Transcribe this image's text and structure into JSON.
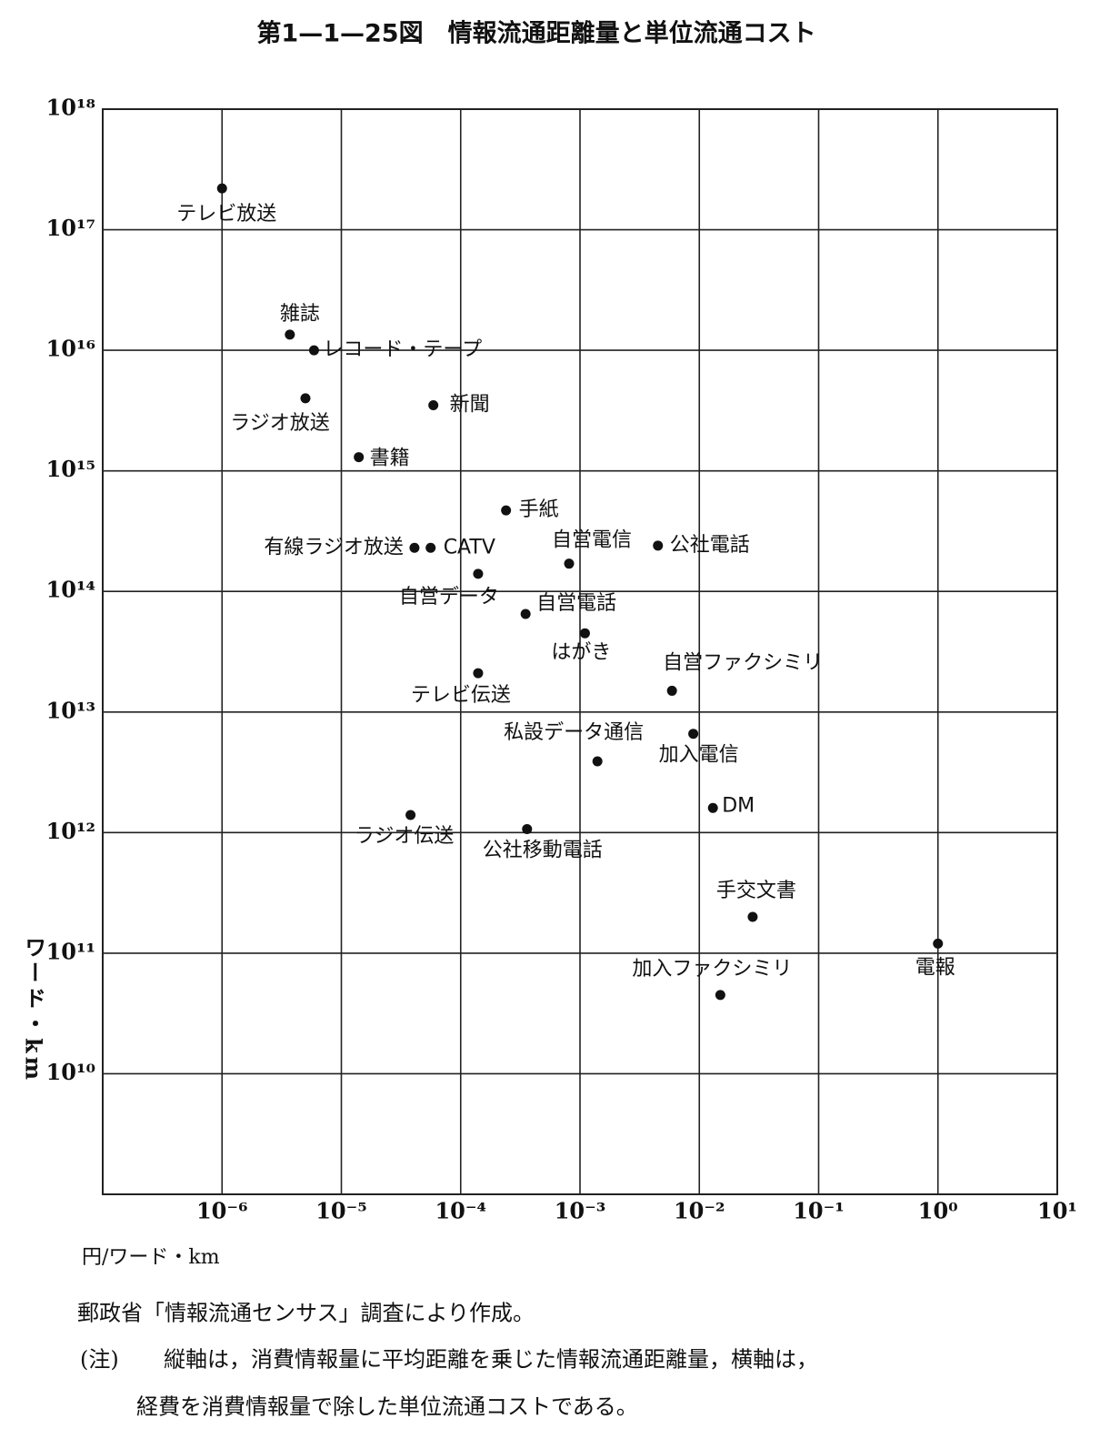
{
  "chart_data": {
    "type": "scatter",
    "title": "第1—1—25図　情報流通距離量と単位流通コスト",
    "x_label": "円/ワード・km",
    "y_label": "ワード・km",
    "log_x": true,
    "log_y": true,
    "grid": true,
    "color": "#111111",
    "xlim": [
      1e-07,
      10
    ],
    "ylim": [
      1000000000.0,
      1e+18
    ],
    "xticks": [
      {
        "value": 1e-06,
        "label": "10⁻⁶"
      },
      {
        "value": 1e-05,
        "label": "10⁻⁵"
      },
      {
        "value": 0.0001,
        "label": "10⁻⁴"
      },
      {
        "value": 0.001,
        "label": "10⁻³"
      },
      {
        "value": 0.01,
        "label": "10⁻²"
      },
      {
        "value": 0.1,
        "label": "10⁻¹"
      },
      {
        "value": 1,
        "label": "10⁰"
      },
      {
        "value": 10,
        "label": "10¹"
      }
    ],
    "yticks": [
      {
        "value": 10000000000.0,
        "label": "10¹⁰"
      },
      {
        "value": 100000000000.0,
        "label": "10¹¹"
      },
      {
        "value": 1000000000000.0,
        "label": "10¹²"
      },
      {
        "value": 10000000000000.0,
        "label": "10¹³"
      },
      {
        "value": 100000000000000.0,
        "label": "10¹⁴"
      },
      {
        "value": 1000000000000000.0,
        "label": "10¹⁵"
      },
      {
        "value": 1e+16,
        "label": "10¹⁶"
      },
      {
        "value": 1e+17,
        "label": "10¹⁷"
      },
      {
        "value": 1e+18,
        "label": "10¹⁸"
      }
    ],
    "points": [
      {
        "label": "テレビ放送",
        "x": 1e-06,
        "y": 2.2e+17
      },
      {
        "label": "雑誌",
        "x": 3.7e-06,
        "y": 1.35e+16
      },
      {
        "label": "レコード・テープ",
        "x": 5.9e-06,
        "y": 1e+16
      },
      {
        "label": "ラジオ放送",
        "x": 5e-06,
        "y": 4000000000000000.0
      },
      {
        "label": "新聞",
        "x": 5.9e-05,
        "y": 3500000000000000.0
      },
      {
        "label": "書籍",
        "x": 1.4e-05,
        "y": 1300000000000000.0
      },
      {
        "label": "手紙",
        "x": 0.00024,
        "y": 470000000000000.0
      },
      {
        "label": "有線ラジオ放送",
        "x": 4.1e-05,
        "y": 230000000000000.0
      },
      {
        "label": "CATV",
        "x": 5.6e-05,
        "y": 230000000000000.0
      },
      {
        "label": "自営電信",
        "x": 0.00081,
        "y": 170000000000000.0
      },
      {
        "label": "公社電話",
        "x": 0.0045,
        "y": 240000000000000.0
      },
      {
        "label": "自営データ",
        "x": 0.00014,
        "y": 140000000000000.0
      },
      {
        "label": "自営電話",
        "x": 0.00035,
        "y": 65000000000000.0
      },
      {
        "label": "はがき",
        "x": 0.0011,
        "y": 45000000000000.0
      },
      {
        "label": "テレビ伝送",
        "x": 0.00014,
        "y": 21000000000000.0
      },
      {
        "label": "自営ファクシミリ",
        "x": 0.0059,
        "y": 15000000000000.0
      },
      {
        "label": "私設データ通信",
        "x": 0.0014,
        "y": 3900000000000.0
      },
      {
        "label": "加入電信",
        "x": 0.0089,
        "y": 6600000000000.0
      },
      {
        "label": "DM",
        "x": 0.013,
        "y": 1600000000000.0
      },
      {
        "label": "ラジオ伝送",
        "x": 3.8e-05,
        "y": 1400000000000.0
      },
      {
        "label": "公社移動電話",
        "x": 0.00036,
        "y": 1070000000000.0
      },
      {
        "label": "手交文書",
        "x": 0.028,
        "y": 200000000000.0
      },
      {
        "label": "電報",
        "x": 1.0,
        "y": 120000000000.0
      },
      {
        "label": "加入ファクシミリ",
        "x": 0.015,
        "y": 45000000000.0
      }
    ],
    "source": "郵政省「情報流通センサス」調査により作成。",
    "note_label": "(注)",
    "note_lines": [
      "縦軸は，消費情報量に平均距離を乗じた情報流通距離量，横軸は，",
      "経費を消費情報量で除した単位流通コストである。"
    ]
  }
}
